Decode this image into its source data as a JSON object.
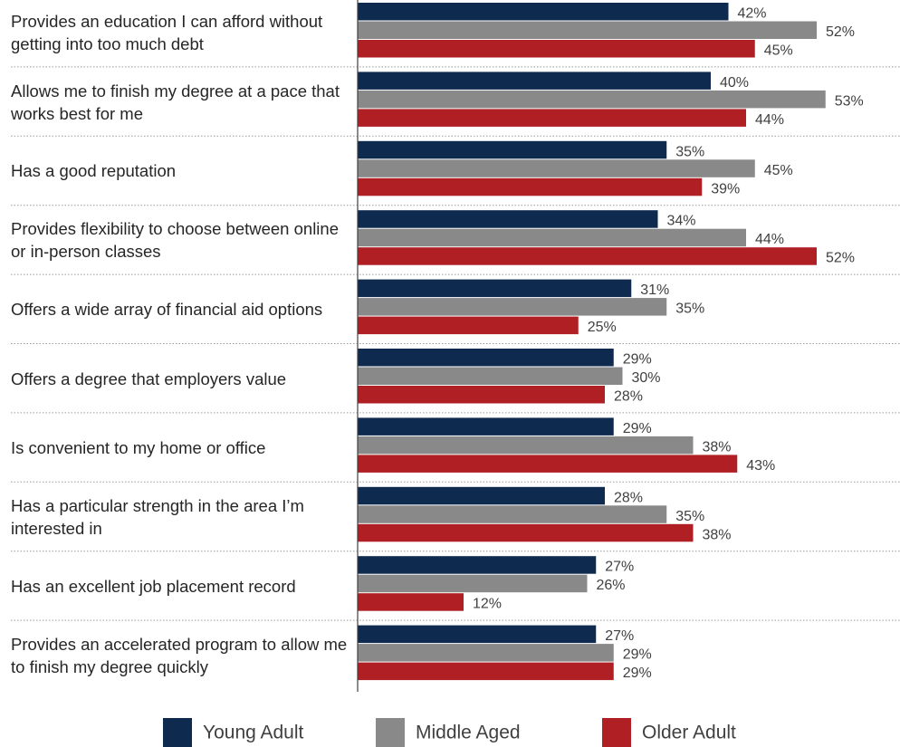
{
  "chart_data": {
    "type": "bar",
    "orientation": "horizontal",
    "categories": [
      "Provides an education I can afford without getting into too much debt",
      "Allows me to finish my degree at a pace that works best for me",
      "Has a good reputation",
      "Provides flexibility to choose between online or in-person classes",
      "Offers a wide array of financial aid options",
      "Offers a degree that employers value",
      "Is convenient to my home or office",
      "Has a particular strength in the area I’m interested in",
      "Has an excellent job placement record",
      "Provides an accelerated program to allow me to finish my degree quickly"
    ],
    "series": [
      {
        "name": "Young Adult",
        "color": "#0e2a4f",
        "values": [
          42,
          40,
          35,
          34,
          31,
          29,
          29,
          28,
          27,
          27
        ],
        "value_labels": [
          "42%",
          "40%",
          "35%",
          "34%",
          "31%",
          "29%",
          "29%",
          "28%",
          "27%",
          "27%"
        ]
      },
      {
        "name": "Middle Aged",
        "color": "#898989",
        "values": [
          52,
          53,
          45,
          44,
          35,
          30,
          38,
          35,
          26,
          29
        ],
        "value_labels": [
          "52%",
          "53%",
          "45%",
          "44%",
          "35%",
          "30%",
          "38%",
          "35%",
          "26%",
          "29%"
        ]
      },
      {
        "name": "Older Adult",
        "color": "#b01f24",
        "values": [
          45,
          44,
          39,
          52,
          25,
          28,
          43,
          38,
          12,
          29
        ],
        "value_labels": [
          "45%",
          "44%",
          "39%",
          "52%",
          "25%",
          "28%",
          "43%",
          "38%",
          "12%",
          "29%"
        ]
      }
    ],
    "legend": "bottom"
  }
}
